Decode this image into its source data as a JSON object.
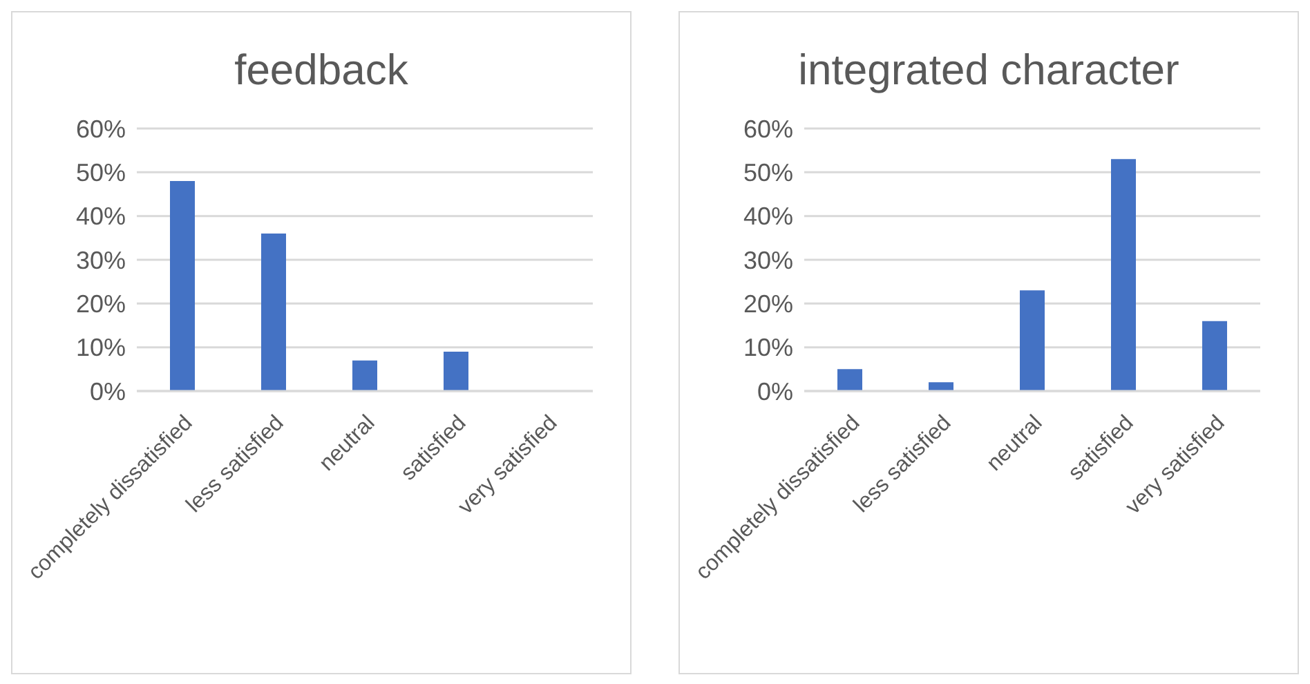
{
  "chart_data": [
    {
      "type": "bar",
      "title": "feedback",
      "categories": [
        "completely dissatisfied",
        "less satisfied",
        "neutral",
        "satisfied",
        "very satisfied"
      ],
      "values": [
        48,
        36,
        7,
        9,
        0
      ],
      "color": "#4472c4",
      "ylim": [
        0,
        60
      ],
      "yticks": [
        {
          "value": 0,
          "label": "0%"
        },
        {
          "value": 10,
          "label": "10%"
        },
        {
          "value": 20,
          "label": "20%"
        },
        {
          "value": 30,
          "label": "30%"
        },
        {
          "value": 40,
          "label": "40%"
        },
        {
          "value": 50,
          "label": "50%"
        },
        {
          "value": 60,
          "label": "60%"
        }
      ],
      "grid": "y",
      "legend": false
    },
    {
      "type": "bar",
      "title": "integrated character",
      "categories": [
        "completely dissatisfied",
        "less satisfied",
        "neutral",
        "satisfied",
        "very satisfied"
      ],
      "values": [
        5,
        2,
        23,
        53,
        16
      ],
      "color": "#4472c4",
      "ylim": [
        0,
        60
      ],
      "yticks": [
        {
          "value": 0,
          "label": "0%"
        },
        {
          "value": 10,
          "label": "10%"
        },
        {
          "value": 20,
          "label": "20%"
        },
        {
          "value": 30,
          "label": "30%"
        },
        {
          "value": 40,
          "label": "40%"
        },
        {
          "value": 50,
          "label": "50%"
        },
        {
          "value": 60,
          "label": "60%"
        }
      ],
      "grid": "y",
      "legend": false
    }
  ]
}
